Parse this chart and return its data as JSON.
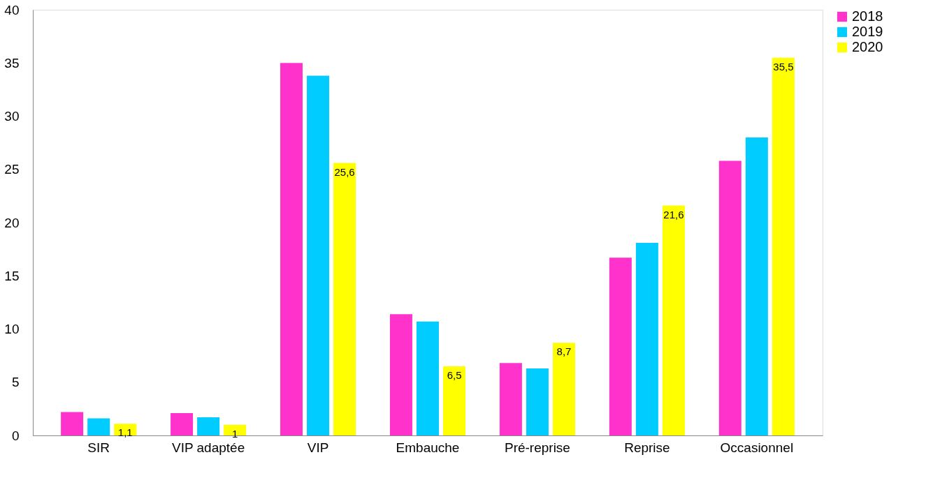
{
  "chart_data": {
    "type": "bar",
    "categories": [
      "SIR",
      "VIP adaptée",
      "VIP",
      "Embauche",
      "Pré-reprise",
      "Reprise",
      "Occasionnel"
    ],
    "series": [
      {
        "name": "2018",
        "color": "#ff33cc",
        "values": [
          2.2,
          2.1,
          35.0,
          11.4,
          6.8,
          16.7,
          25.8
        ]
      },
      {
        "name": "2019",
        "color": "#00ccff",
        "values": [
          1.6,
          1.7,
          33.8,
          10.7,
          6.3,
          18.1,
          28.0
        ]
      },
      {
        "name": "2020",
        "color": "#ffff00",
        "values": [
          1.1,
          1,
          25.6,
          6.5,
          8.7,
          21.6,
          35.5
        ],
        "value_labels": [
          "1,1",
          "1",
          "25,6",
          "6,5",
          "8,7",
          "21,6",
          "35,5"
        ]
      }
    ],
    "ylim": [
      0,
      40
    ],
    "yticks": [
      0,
      5,
      10,
      15,
      20,
      25,
      30,
      35,
      40
    ],
    "grid": false,
    "legend": "right"
  }
}
